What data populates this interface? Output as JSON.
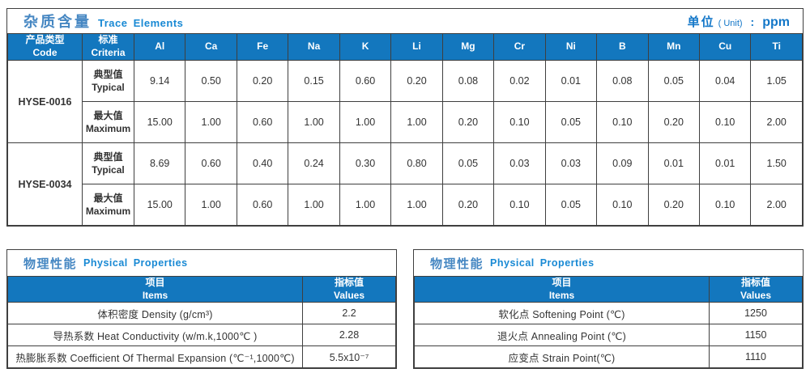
{
  "colors": {
    "header_bg": "#1377be",
    "title_zh": "#4687c2",
    "title_en": "#1889d4",
    "unit_text": "#1377c8",
    "border": "#3f3f3f",
    "cell_text": "#333333"
  },
  "trace": {
    "title_zh": "杂质含量",
    "title_en": "Trace Elements",
    "unit_zh": "单位",
    "unit_paren": "( Unit)",
    "unit_colon": ":",
    "unit_value": "ppm",
    "col_code_zh": "产品类型",
    "col_code_en": "Code",
    "col_criteria_zh": "标准",
    "col_criteria_en": "Criteria",
    "elements": [
      "Al",
      "Ca",
      "Fe",
      "Na",
      "K",
      "Li",
      "Mg",
      "Cr",
      "Ni",
      "B",
      "Mn",
      "Cu",
      "Ti"
    ],
    "row_labels": {
      "typical_zh": "典型值",
      "typical_en": "Typical",
      "maximum_zh": "最大值",
      "maximum_en": "Maximum"
    },
    "products": [
      {
        "code": "HYSE-0016",
        "typical": [
          "9.14",
          "0.50",
          "0.20",
          "0.15",
          "0.60",
          "0.20",
          "0.08",
          "0.02",
          "0.01",
          "0.08",
          "0.05",
          "0.04",
          "1.05"
        ],
        "maximum": [
          "15.00",
          "1.00",
          "0.60",
          "1.00",
          "1.00",
          "1.00",
          "0.20",
          "0.10",
          "0.05",
          "0.10",
          "0.20",
          "0.10",
          "2.00"
        ]
      },
      {
        "code": "HYSE-0034",
        "typical": [
          "8.69",
          "0.60",
          "0.40",
          "0.24",
          "0.30",
          "0.80",
          "0.05",
          "0.03",
          "0.03",
          "0.09",
          "0.01",
          "0.01",
          "1.50"
        ],
        "maximum": [
          "15.00",
          "1.00",
          "0.60",
          "1.00",
          "1.00",
          "1.00",
          "0.20",
          "0.10",
          "0.05",
          "0.10",
          "0.20",
          "0.10",
          "2.00"
        ]
      }
    ]
  },
  "physical_left": {
    "title_zh": "物理性能",
    "title_en": "Physical Properties",
    "col_item_zh": "项目",
    "col_item_en": "Items",
    "col_value_zh": "指标值",
    "col_value_en": "Values",
    "rows": [
      {
        "item": "体积密度 Density (g/cm³)",
        "value": "2.2"
      },
      {
        "item": "导热系数 Heat Conductivity (w/m.k,1000℃ )",
        "value": "2.28"
      },
      {
        "item": "热膨胀系数 Coefficient Of Thermal Expansion (℃⁻¹,1000℃)",
        "value": "5.5x10⁻⁷"
      }
    ]
  },
  "physical_right": {
    "title_zh": "物理性能",
    "title_en": "Physical Properties",
    "col_item_zh": "项目",
    "col_item_en": "Items",
    "col_value_zh": "指标值",
    "col_value_en": "Values",
    "rows": [
      {
        "item": "软化点 Softening Point (℃)",
        "value": "1250"
      },
      {
        "item": "退火点 Annealing Point (℃)",
        "value": "1150"
      },
      {
        "item": "应变点 Strain Point(℃)",
        "value": "1110"
      }
    ]
  }
}
